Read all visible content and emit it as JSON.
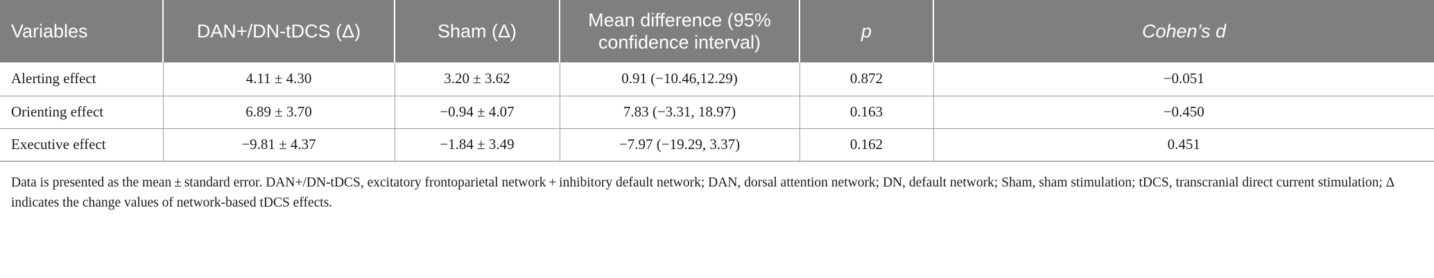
{
  "table": {
    "headers": [
      "Variables",
      "DAN+/DN-tDCS (Δ)",
      "Sham (Δ)",
      "Mean difference (95% confidence interval)",
      "p",
      "Cohen’s d"
    ],
    "rows": [
      [
        "Alerting effect",
        "4.11 ± 4.30",
        "3.20 ± 3.62",
        "0.91 (−10.46,12.29)",
        "0.872",
        "−0.051"
      ],
      [
        "Orienting effect",
        "6.89 ± 3.70",
        "−0.94 ± 4.07",
        "7.83 (−3.31, 18.97)",
        "0.163",
        "−0.450"
      ],
      [
        "Executive effect",
        "−9.81 ± 4.37",
        "−1.84 ± 3.49",
        "−7.97 (−19.29, 3.37)",
        "0.162",
        "0.451"
      ]
    ]
  },
  "footnote": "Data is presented as the mean ± standard error. DAN+/DN-tDCS, excitatory frontoparietal network + inhibitory default network; DAN, dorsal attention network; DN, default network; Sham, sham stimulation; tDCS, transcranial direct current stimulation; Δ indicates the change values of network-based tDCS effects."
}
